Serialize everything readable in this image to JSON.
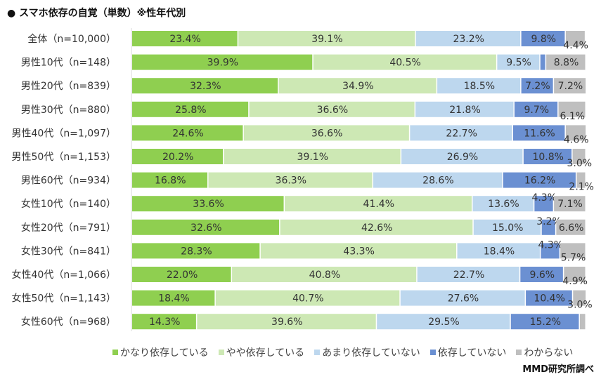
{
  "title": "● スマホ依存の自覚（単数）※性年代別",
  "source": "MMD研究所調べ",
  "chart_data": {
    "type": "bar",
    "orientation": "horizontal",
    "stacked": "percent",
    "categories": [
      "全体（n=10,000）",
      "男性10代（n=148）",
      "男性20代（n=839）",
      "男性30代（n=880）",
      "男性40代（n=1,097）",
      "男性50代（n=1,153）",
      "男性60代（n=934）",
      "女性10代（n=140）",
      "女性20代（n=791）",
      "女性30代（n=841）",
      "女性40代（n=1,066）",
      "女性50代（n=1,143）",
      "女性60代（n=968）"
    ],
    "series": [
      {
        "name": "かなり依存している",
        "color": "#8fcf50",
        "values": [
          23.4,
          39.9,
          32.3,
          25.8,
          24.6,
          20.2,
          16.8,
          33.6,
          32.6,
          28.3,
          22.0,
          18.4,
          14.3
        ]
      },
      {
        "name": "やや依存している",
        "color": "#cde8b4",
        "values": [
          39.1,
          40.5,
          34.9,
          36.6,
          36.6,
          39.1,
          36.3,
          41.4,
          42.6,
          43.3,
          40.8,
          40.7,
          39.6
        ]
      },
      {
        "name": "あまり依存していない",
        "color": "#bdd7ee",
        "values": [
          23.2,
          9.5,
          18.5,
          21.8,
          22.7,
          26.9,
          28.6,
          13.6,
          15.0,
          18.4,
          22.7,
          27.6,
          29.5
        ]
      },
      {
        "name": "依存していない",
        "color": "#6b90d2",
        "values": [
          9.8,
          1.3,
          7.2,
          9.7,
          11.6,
          10.8,
          16.2,
          4.3,
          3.2,
          4.3,
          9.6,
          10.4,
          15.2
        ],
        "labels": [
          "9.8%",
          null,
          "7.2%",
          "9.7%",
          "11.6%",
          "10.8%",
          "16.2%",
          "4.3%",
          "3.2%",
          "4.3%",
          "9.6%",
          "10.4%",
          "15.2%"
        ]
      },
      {
        "name": "わからない",
        "color": "#bfbfbf",
        "values": [
          4.4,
          8.8,
          7.2,
          6.1,
          4.6,
          3.0,
          2.1,
          7.1,
          6.6,
          5.7,
          4.9,
          3.0,
          1.4
        ],
        "labels": [
          "4.4%",
          "8.8%",
          "7.2%",
          "6.1%",
          "4.6%",
          "3.0%",
          "2.1%",
          "7.1%",
          "6.6%",
          "5.7%",
          "4.9%",
          "3.0%",
          null
        ]
      }
    ],
    "xlim": [
      0,
      100
    ],
    "legend": "bottom"
  }
}
